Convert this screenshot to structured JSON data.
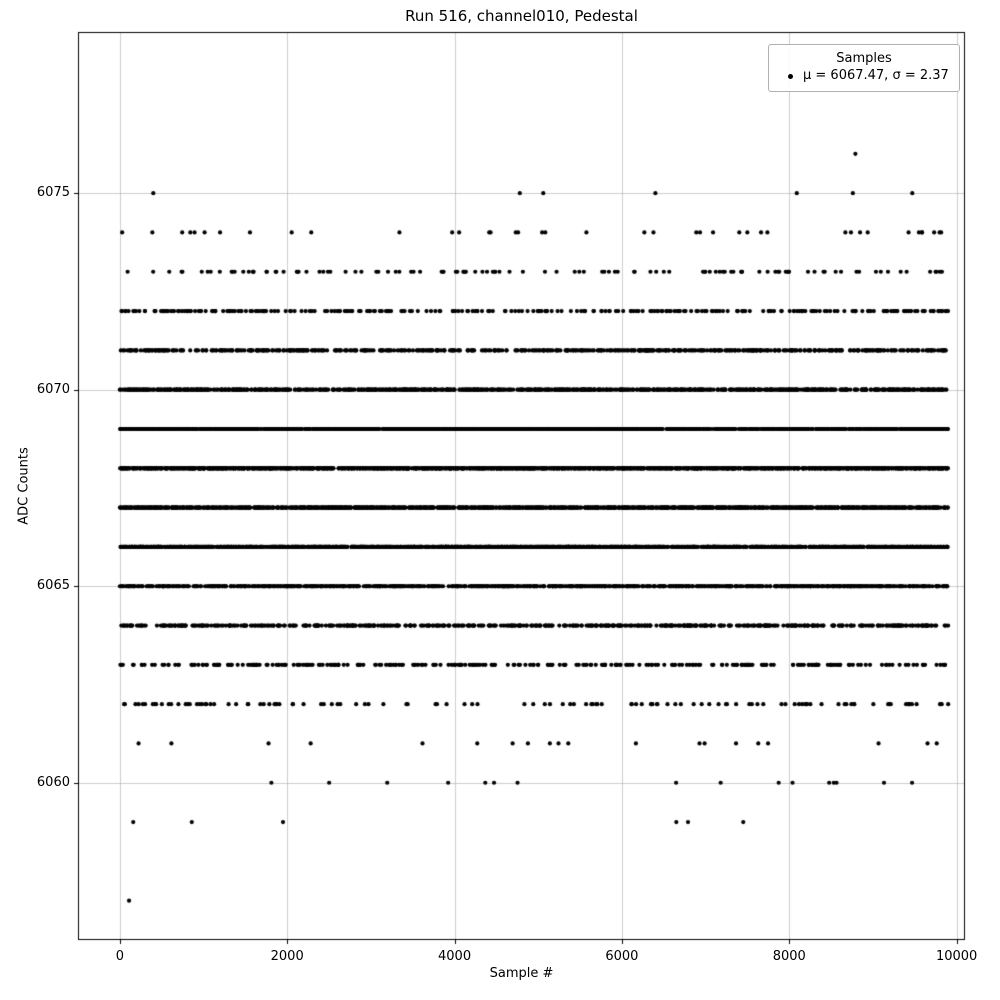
{
  "title": "Run 516, channel010, Pedestal",
  "chart_data": {
    "type": "scatter",
    "title": "Run 516, channel010, Pedestal",
    "xlabel": "Sample #",
    "ylabel": "ADC Counts",
    "xlim": [
      -500,
      10100
    ],
    "ylim": [
      6056.0,
      6079.1
    ],
    "xticks": [
      0,
      2000,
      4000,
      6000,
      8000,
      10000
    ],
    "yticks": [
      6060,
      6065,
      6070,
      6075
    ],
    "grid": true,
    "n_samples": 9900,
    "marker": {
      "color": "#000000",
      "radius": 2.1
    },
    "grid_color": "#b0b0b0",
    "stats": {
      "mu": 6067.47,
      "sigma": 2.37
    },
    "legend": {
      "title": "Samples",
      "label": "μ = 6067.47, σ = 2.37",
      "position": "upper right"
    },
    "value_counts": {
      "6060": 16,
      "6061": 20,
      "6062": 120,
      "6063": 290,
      "6064": 580,
      "6065": 950,
      "6066": 1370,
      "6067": 1630,
      "6068": 1640,
      "6069": 1350,
      "6070": 950,
      "6071": 560,
      "6072": 280,
      "6073": 115,
      "6074": 40
    },
    "rare_points": [
      {
        "x": 110,
        "y": 6057
      },
      {
        "x": 160,
        "y": 6059
      },
      {
        "x": 860,
        "y": 6059
      },
      {
        "x": 1950,
        "y": 6059
      },
      {
        "x": 6650,
        "y": 6059
      },
      {
        "x": 6790,
        "y": 6059
      },
      {
        "x": 7450,
        "y": 6059
      },
      {
        "x": 400,
        "y": 6075
      },
      {
        "x": 4780,
        "y": 6075
      },
      {
        "x": 5060,
        "y": 6075
      },
      {
        "x": 6400,
        "y": 6075
      },
      {
        "x": 8090,
        "y": 6075
      },
      {
        "x": 8760,
        "y": 6075
      },
      {
        "x": 9470,
        "y": 6075
      },
      {
        "x": 8790,
        "y": 6076
      }
    ]
  }
}
